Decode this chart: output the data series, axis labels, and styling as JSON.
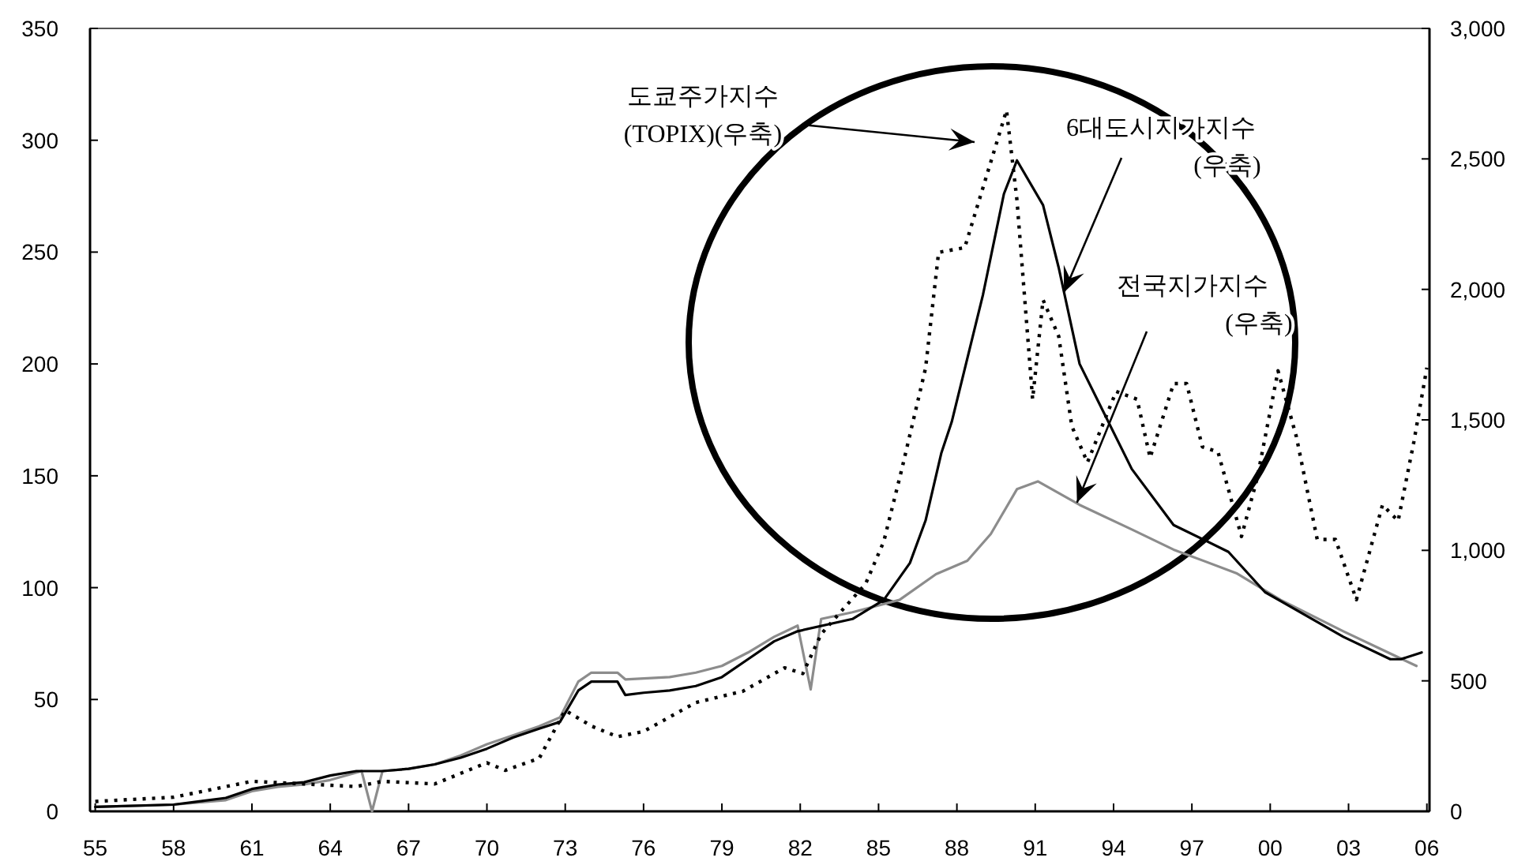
{
  "chart_data": {
    "type": "line",
    "xlim": [
      1954.8,
      2006.1
    ],
    "xticks": [
      {
        "value": 1955,
        "label": "55"
      },
      {
        "value": 1958,
        "label": "58"
      },
      {
        "value": 1961,
        "label": "61"
      },
      {
        "value": 1964,
        "label": "64"
      },
      {
        "value": 1967,
        "label": "67"
      },
      {
        "value": 1970,
        "label": "70"
      },
      {
        "value": 1973,
        "label": "73"
      },
      {
        "value": 1976,
        "label": "76"
      },
      {
        "value": 1979,
        "label": "79"
      },
      {
        "value": 1982,
        "label": "82"
      },
      {
        "value": 1985,
        "label": "85"
      },
      {
        "value": 1988,
        "label": "88"
      },
      {
        "value": 1991,
        "label": "91"
      },
      {
        "value": 1994,
        "label": "94"
      },
      {
        "value": 1997,
        "label": "97"
      },
      {
        "value": 2000,
        "label": "00"
      },
      {
        "value": 2003,
        "label": "03"
      },
      {
        "value": 2006,
        "label": "06"
      }
    ],
    "ylim": [
      0,
      350
    ],
    "yticks": [
      0,
      50,
      100,
      150,
      200,
      250,
      300,
      350
    ],
    "y2lim": [
      0,
      3000
    ],
    "y2ticks": [
      0,
      500,
      {
        "value": 1000,
        "label": "1,000"
      },
      {
        "value": 1500,
        "label": "1,500"
      },
      {
        "value": 2000,
        "label": "2,000"
      },
      {
        "value": 2500,
        "label": "2,500"
      },
      {
        "value": 3000,
        "label": "3,000"
      }
    ],
    "series": [
      {
        "color": "#8c8c8c",
        "line_style": "solid",
        "x": [
          1955,
          1958,
          1960,
          1961,
          1962,
          1963,
          1964,
          1965.2,
          1965.6,
          1966,
          1967,
          1968,
          1969,
          1970,
          1971,
          1972,
          1972.8,
          1973.5,
          1974,
          1975,
          1975.3,
          1977,
          1978,
          1979,
          1980,
          1981,
          1981.9,
          1982.4,
          1982.8,
          1984.0,
          1985.8,
          1987.2,
          1988.4,
          1989.3,
          1990.3,
          1991.1,
          1992.7,
          1994.7,
          1996.3,
          1998.7,
          2000.4,
          2002.8,
          2005.6
        ],
        "values": [
          2,
          3,
          5,
          9,
          11,
          12,
          14,
          18,
          0,
          18,
          19,
          21,
          25,
          30,
          34,
          38,
          42,
          58,
          62,
          62,
          59,
          60,
          62,
          65,
          71,
          78,
          83,
          54.5,
          86,
          89,
          94.5,
          106,
          112,
          124,
          144,
          147.5,
          137,
          126,
          117,
          106.5,
          94.5,
          80.5,
          65
        ]
      },
      {
        "color": "#000000",
        "line_style": "solid",
        "x": [
          1955,
          1958,
          1960,
          1961,
          1962,
          1963,
          1964,
          1965,
          1966,
          1967,
          1968,
          1969,
          1970,
          1971,
          1972,
          1972.8,
          1973.5,
          1974,
          1975,
          1975.3,
          1976,
          1977,
          1978,
          1979,
          1980,
          1981,
          1981.9,
          1984.0,
          1985.2,
          1986.2,
          1986.8,
          1987.4,
          1987.8,
          1989.0,
          1989.8,
          1990.3,
          1991.3,
          1991.9,
          1992.7,
          1994.7,
          1996.3,
          1998.4,
          1999.8,
          2002.8,
          2004.6,
          2005.0,
          2005.8
        ],
        "values": [
          2,
          3,
          6,
          10,
          12,
          13,
          16,
          18,
          18,
          19,
          21,
          24,
          28,
          33,
          37,
          40,
          54,
          58,
          58,
          52,
          53,
          54,
          56,
          60,
          68,
          76,
          80.5,
          86,
          94.5,
          111,
          130,
          160,
          174,
          231,
          276,
          291,
          271,
          243,
          200,
          153,
          128,
          116,
          98,
          78,
          68,
          68,
          71
        ]
      },
      {
        "color": "#000000",
        "line_style": "dotted",
        "axis": "y2",
        "x": [
          1955,
          1958,
          1961,
          1963,
          1965,
          1966,
          1968,
          1970,
          1970.7,
          1972,
          1973,
          1974,
          1975,
          1976,
          1978,
          1979.8,
          1981.4,
          1982.1,
          1982.8,
          1983.6,
          1984.5,
          1985.2,
          1985.9,
          1986.8,
          1987.3,
          1988.3,
          1989.9,
          1990.3,
          1990.9,
          1991.3,
          1991.9,
          1992.4,
          1993.0,
          1994.1,
          1994.9,
          1995.4,
          1996.3,
          1996.8,
          1997.4,
          1998.0,
          1998.9,
          1999.5,
          2000.3,
          2001.0,
          2001.8,
          2002.5,
          2003.3,
          2004.3,
          2004.9,
          2005.5,
          2006.0
        ],
        "values": [
          38,
          54,
          115,
          105,
          95,
          115,
          105,
          186,
          157,
          203,
          387,
          327,
          286,
          306,
          417,
          460,
          550,
          528,
          679,
          770,
          871,
          1034,
          1315,
          1698,
          2142,
          2160,
          2686,
          2343,
          1579,
          1960,
          1820,
          1476,
          1337,
          1609,
          1579,
          1355,
          1639,
          1639,
          1397,
          1377,
          1053,
          1276,
          1688,
          1436,
          1042,
          1042,
          811,
          1174,
          1113,
          1415,
          1700
        ]
      }
    ],
    "annotations": [
      "도쿄주가지수\n(TOPIX)(우축)",
      {
        "text": "6대도시지가지수\n(우축)",
        "x": 1992.1,
        "y": 232
      },
      {
        "text": "전국지가지수\n(우축)",
        "x": 1992.6,
        "y": 138
      }
    ]
  }
}
